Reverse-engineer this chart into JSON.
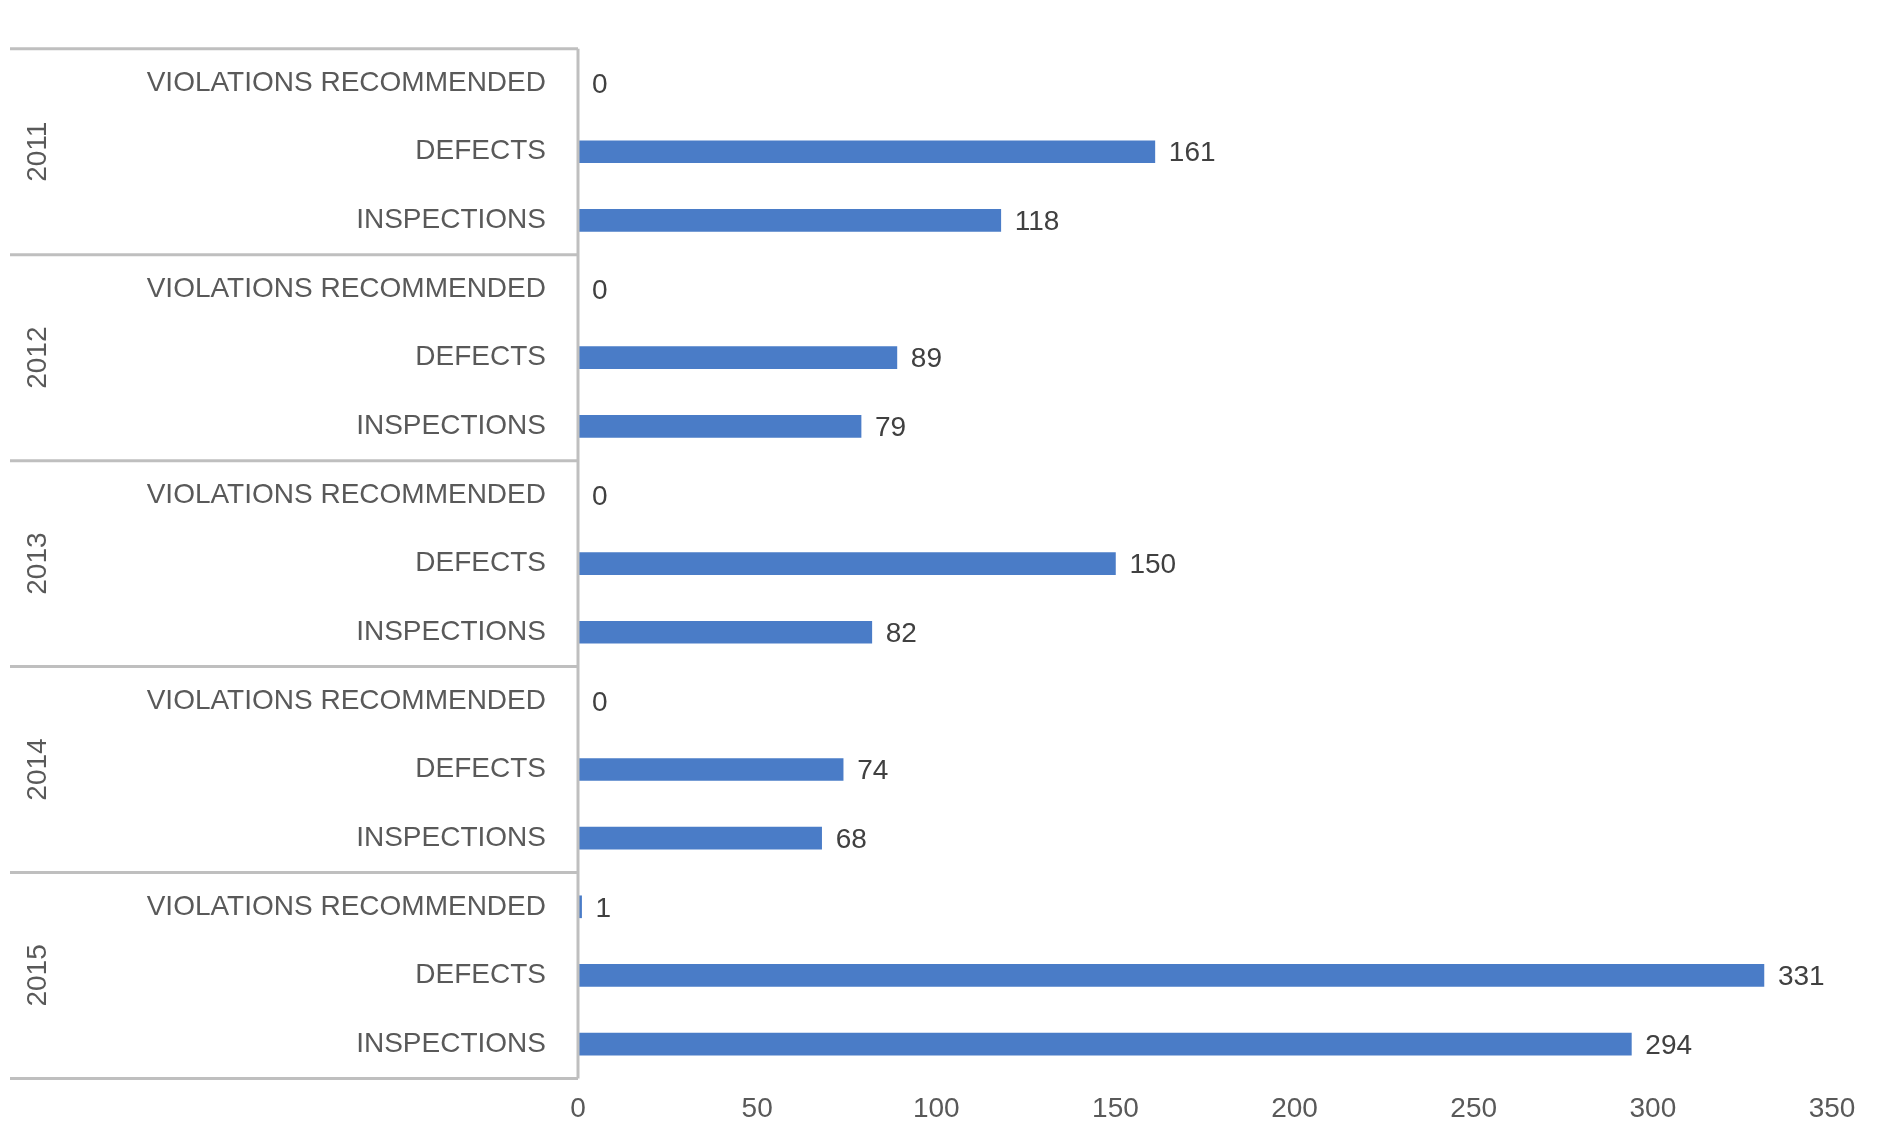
{
  "chart_data": {
    "type": "bar",
    "orientation": "horizontal",
    "categories": [
      "VIOLATIONS RECOMMENDED",
      "DEFECTS",
      "INSPECTIONS",
      "VIOLATIONS RECOMMENDED",
      "DEFECTS",
      "INSPECTIONS",
      "VIOLATIONS RECOMMENDED",
      "DEFECTS",
      "INSPECTIONS",
      "VIOLATIONS RECOMMENDED",
      "DEFECTS",
      "INSPECTIONS",
      "VIOLATIONS RECOMMENDED",
      "DEFECTS",
      "INSPECTIONS"
    ],
    "values": [
      0,
      161,
      118,
      0,
      89,
      79,
      0,
      150,
      82,
      0,
      74,
      68,
      1,
      331,
      294
    ],
    "color": "#4a7cc7",
    "xlim": [
      0,
      350
    ],
    "xticks": [
      0,
      50,
      100,
      150,
      200,
      250,
      300,
      350
    ],
    "annotations": [
      "2011",
      "2012",
      "2013",
      "2014",
      "2015"
    ],
    "data_labels": true,
    "grid": false,
    "legend": false
  }
}
